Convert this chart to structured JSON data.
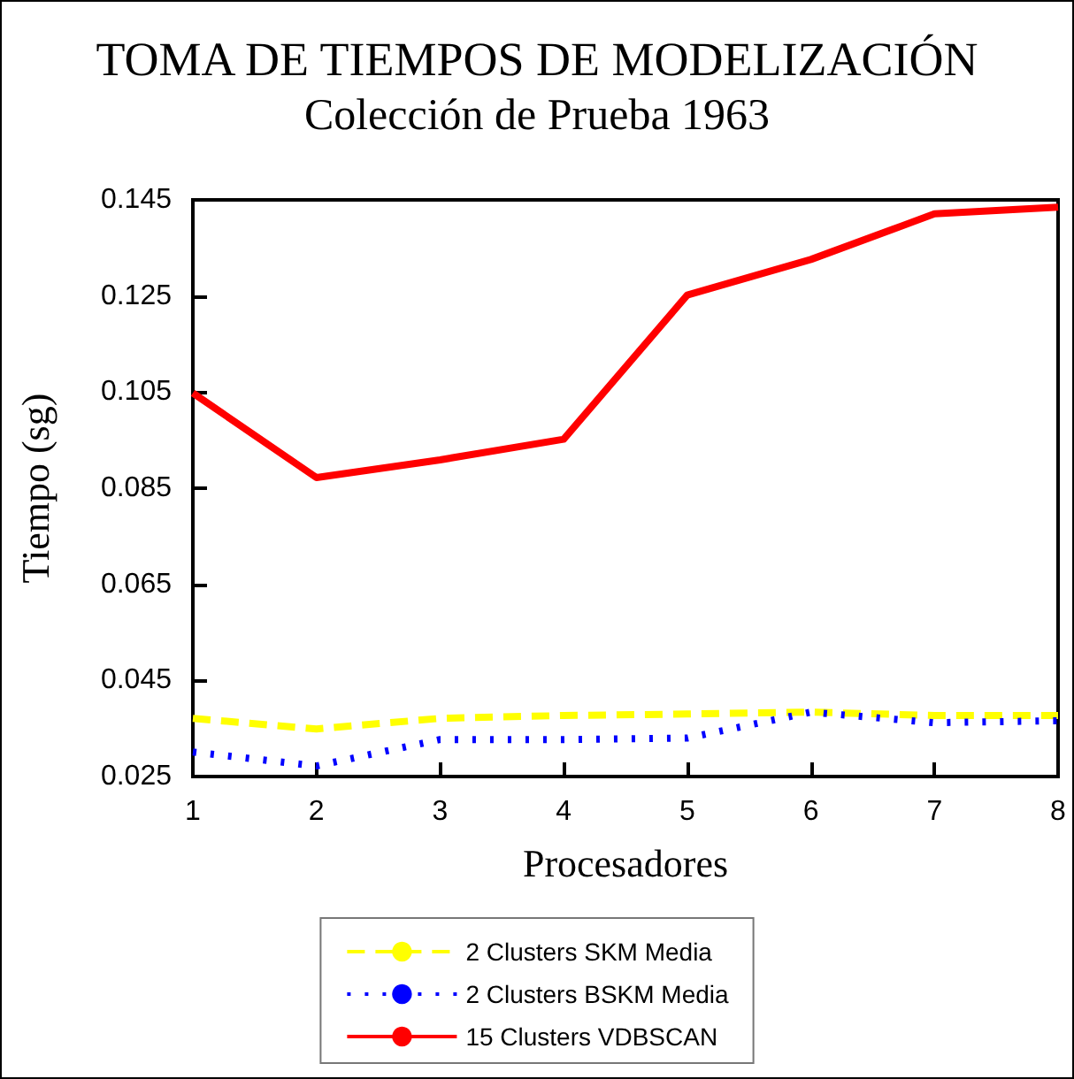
{
  "chart_data": {
    "type": "line",
    "title": "TOMA DE TIEMPOS DE MODELIZACIÓN",
    "subtitle": "Colección de Prueba 1963",
    "xlabel": "Procesadores",
    "ylabel": "Tiempo (sg)",
    "x": [
      1,
      2,
      3,
      4,
      5,
      6,
      7,
      8
    ],
    "series": [
      {
        "name": "2 Clusters SKM Media",
        "color": "#ffff00",
        "line_style": "dashed",
        "values": [
          0.0371,
          0.0349,
          0.0371,
          0.0377,
          0.038,
          0.0384,
          0.0377,
          0.0377
        ]
      },
      {
        "name": "2 Clusters BSKM Media",
        "color": "#0000ff",
        "line_style": "dotted",
        "values": [
          0.0301,
          0.0272,
          0.0327,
          0.0327,
          0.033,
          0.0384,
          0.0362,
          0.0366
        ]
      },
      {
        "name": "15 Clusters VDBSCAN",
        "color": "#ff0000",
        "line_style": "solid",
        "values": [
          0.1048,
          0.0872,
          0.0909,
          0.0952,
          0.1252,
          0.1326,
          0.1421,
          0.1435
        ]
      }
    ],
    "xlim": [
      1,
      8
    ],
    "xticks": [
      1,
      2,
      3,
      4,
      5,
      6,
      7,
      8
    ],
    "ylim": [
      0.025,
      0.145
    ],
    "yticks": [
      0.025,
      0.045,
      0.065,
      0.085,
      0.105,
      0.125,
      0.145
    ],
    "grid": false,
    "legend": "bottom",
    "marker": "none"
  }
}
